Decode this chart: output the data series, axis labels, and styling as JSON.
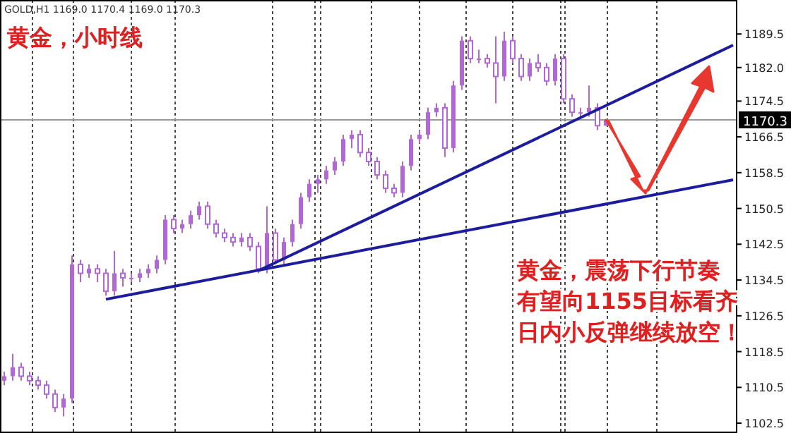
{
  "chart_data": {
    "type": "candlestick",
    "title": "黄金，小时线",
    "annotations": [
      "GOLD,H1  1169.0  1170.4  1169.0  1170.3",
      "黄金，震荡下行节奏",
      "有望向1155目标看齐",
      "日内小反弹继续放空！"
    ],
    "categories": [
      null,
      null,
      null,
      null,
      null,
      null,
      null,
      null,
      null,
      null,
      null,
      null,
      null,
      null,
      null,
      null,
      null,
      null,
      null,
      null,
      null,
      null,
      null,
      null,
      null,
      null,
      null,
      null,
      null,
      null,
      null,
      null,
      null,
      null,
      null,
      null,
      null,
      null,
      null,
      null,
      null,
      null,
      null,
      null,
      null,
      null,
      null,
      null,
      null,
      null,
      null,
      null,
      null,
      null,
      null,
      null,
      null,
      null,
      null,
      null,
      null,
      null,
      null,
      null,
      null,
      null,
      null,
      null,
      null,
      null,
      null,
      null,
      null,
      null,
      null,
      null,
      null,
      null,
      null,
      null,
      null,
      null,
      null,
      null,
      null,
      null,
      null
    ],
    "color": "#b366d9",
    "grid": "x",
    "ohlc": [
      [
        1112,
        1114,
        1111,
        1113
      ],
      [
        1113,
        1118,
        1112,
        1115
      ],
      [
        1115,
        1116,
        1112,
        1113
      ],
      [
        1113,
        1114,
        1111,
        1112
      ],
      [
        1112,
        1113,
        1110,
        1111
      ],
      [
        1111,
        1112,
        1108,
        1109
      ],
      [
        1109,
        1110,
        1105,
        1106
      ],
      [
        1106,
        1109,
        1104,
        1108
      ],
      [
        1108,
        1140,
        1107,
        1138
      ],
      [
        1138,
        1139,
        1134,
        1136
      ],
      [
        1136,
        1138,
        1135,
        1137
      ],
      [
        1137,
        1138,
        1134,
        1136
      ],
      [
        1136,
        1137,
        1131,
        1132
      ],
      [
        1132,
        1141,
        1131,
        1136
      ],
      [
        1136,
        1137,
        1133,
        1135
      ],
      [
        1135,
        1136,
        1134,
        1135
      ],
      [
        1135,
        1137,
        1134,
        1136
      ],
      [
        1136,
        1138,
        1135,
        1137
      ],
      [
        1137,
        1140,
        1136,
        1139
      ],
      [
        1139,
        1149,
        1138,
        1148
      ],
      [
        1148,
        1149,
        1145,
        1146
      ],
      [
        1146,
        1148,
        1145,
        1147
      ],
      [
        1147,
        1150,
        1146,
        1149
      ],
      [
        1149,
        1152,
        1148,
        1151
      ],
      [
        1151,
        1152,
        1146,
        1147
      ],
      [
        1147,
        1148,
        1144,
        1145
      ],
      [
        1145,
        1146,
        1143,
        1144
      ],
      [
        1144,
        1145,
        1142,
        1143
      ],
      [
        1143,
        1145,
        1142,
        1144
      ],
      [
        1144,
        1145,
        1141,
        1142
      ],
      [
        1142,
        1143,
        1136,
        1137
      ],
      [
        1137,
        1151,
        1136,
        1145
      ],
      [
        1145,
        1146,
        1138,
        1139
      ],
      [
        1139,
        1144,
        1138,
        1143
      ],
      [
        1143,
        1148,
        1142,
        1147
      ],
      [
        1147,
        1154,
        1146,
        1153
      ],
      [
        1153,
        1157,
        1152,
        1156
      ],
      [
        1156,
        1158,
        1154,
        1157
      ],
      [
        1157,
        1160,
        1156,
        1159
      ],
      [
        1159,
        1162,
        1158,
        1161
      ],
      [
        1161,
        1167,
        1160,
        1166
      ],
      [
        1166,
        1168,
        1164,
        1167
      ],
      [
        1167,
        1168,
        1162,
        1163
      ],
      [
        1163,
        1164,
        1160,
        1161
      ],
      [
        1161,
        1162,
        1157,
        1158
      ],
      [
        1158,
        1159,
        1154,
        1155
      ],
      [
        1155,
        1156,
        1153,
        1154
      ],
      [
        1154,
        1161,
        1153,
        1160
      ],
      [
        1160,
        1167,
        1159,
        1166
      ],
      [
        1166,
        1168,
        1165,
        1167
      ],
      [
        1167,
        1173,
        1166,
        1172
      ],
      [
        1172,
        1174,
        1171,
        1173
      ],
      [
        1173,
        1174,
        1162,
        1164
      ],
      [
        1164,
        1179,
        1163,
        1178
      ],
      [
        1178,
        1189,
        1177,
        1188
      ],
      [
        1188,
        1189,
        1183,
        1184
      ],
      [
        1184,
        1186,
        1183,
        1184
      ],
      [
        1184,
        1185,
        1182,
        1183
      ],
      [
        1183,
        1189,
        1174,
        1180
      ],
      [
        1180,
        1190,
        1179,
        1188
      ],
      [
        1188,
        1189,
        1183,
        1184
      ],
      [
        1184,
        1185,
        1179,
        1180
      ],
      [
        1180,
        1184,
        1179,
        1183
      ],
      [
        1183,
        1185,
        1181,
        1182
      ],
      [
        1182,
        1183,
        1178,
        1179
      ],
      [
        1179,
        1185,
        1178,
        1184
      ],
      [
        1184,
        1185,
        1174,
        1175
      ],
      [
        1175,
        1176,
        1171,
        1172
      ],
      [
        1172,
        1173,
        1171,
        1172
      ],
      [
        1172,
        1178,
        1171,
        1173
      ],
      [
        1173,
        1174,
        1168,
        1169
      ],
      [
        1169,
        1170.4,
        1169,
        1170.3
      ],
      null,
      null,
      null,
      null,
      null,
      null,
      null,
      null,
      null,
      null,
      null,
      null,
      null,
      null,
      null
    ],
    "series": [
      {
        "type": "line",
        "color": "#1c1c9c",
        "values": [
          null,
          null,
          null,
          null,
          null,
          null,
          null,
          null,
          null,
          null,
          null,
          null,
          1130.2,
          null,
          null,
          null,
          null,
          null,
          null,
          null,
          null,
          null,
          null,
          null,
          null,
          null,
          null,
          null,
          null,
          null,
          null,
          null,
          null,
          null,
          null,
          null,
          null,
          null,
          null,
          null,
          null,
          null,
          null,
          null,
          null,
          null,
          null,
          null,
          null,
          null,
          null,
          null,
          null,
          null,
          null,
          null,
          null,
          null,
          null,
          null,
          null,
          null,
          null,
          null,
          null,
          null,
          null,
          null,
          null,
          null,
          null,
          null,
          null,
          null,
          null,
          null,
          null,
          null,
          null,
          null,
          null,
          null,
          null,
          null,
          null,
          null,
          1156.9
        ]
      },
      {
        "type": "line",
        "color": "#1c1c9c",
        "values": [
          null,
          null,
          null,
          null,
          null,
          null,
          null,
          null,
          null,
          null,
          null,
          null,
          null,
          null,
          null,
          null,
          null,
          null,
          null,
          null,
          null,
          null,
          null,
          null,
          null,
          null,
          null,
          null,
          null,
          null,
          1136.6,
          null,
          null,
          null,
          null,
          null,
          null,
          null,
          null,
          null,
          null,
          null,
          null,
          null,
          null,
          null,
          null,
          null,
          null,
          null,
          null,
          null,
          null,
          null,
          null,
          null,
          null,
          null,
          null,
          null,
          null,
          null,
          null,
          null,
          null,
          null,
          null,
          null,
          null,
          null,
          null,
          null,
          null,
          null,
          null,
          null,
          null,
          null,
          null,
          null,
          null,
          null,
          null,
          null,
          null,
          null,
          1187.0
        ]
      }
    ],
    "ylim": [
      1100.3,
      1197.1
    ],
    "yticks": [
      1189.5,
      {
        "value": 1182,
        "label": "1182.0"
      },
      1174.5,
      1166.5,
      1158.5,
      1150.5,
      1142.5,
      1134.5,
      1126.5,
      1118.5,
      1110.5,
      1102.5
    ],
    "ref_lines": [
      {
        "axis": "y",
        "value": 1170.3,
        "label": "1170.3",
        "color": "#999999",
        "line_style": "solid"
      }
    ]
  }
}
